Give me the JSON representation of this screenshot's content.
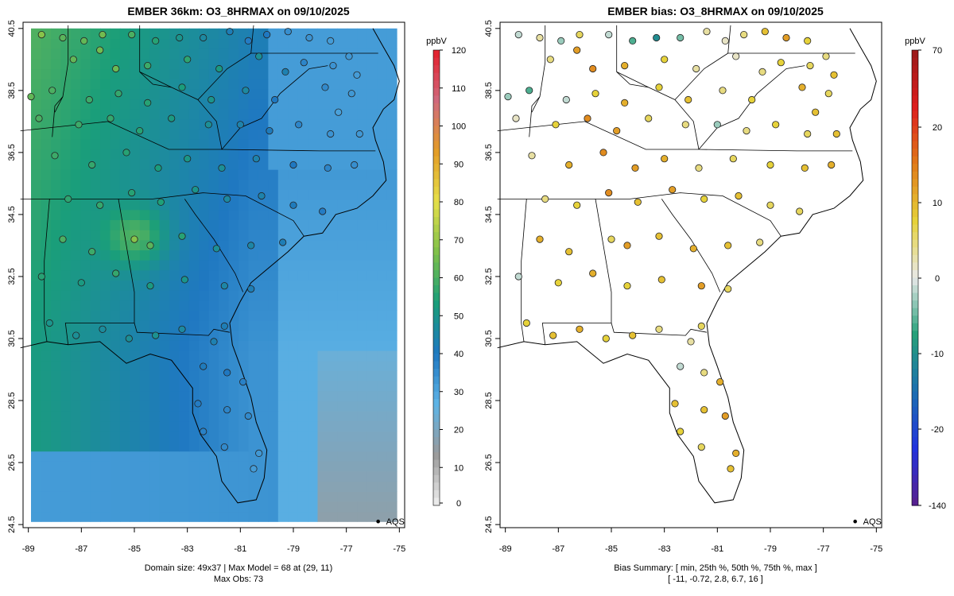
{
  "left_panel": {
    "title": "EMBER 36km: O3_8HRMAX on 09/10/2025",
    "colorbar": {
      "unit": "ppbV",
      "ticks": [
        "0",
        "10",
        "20",
        "30",
        "40",
        "50",
        "60",
        "70",
        "80",
        "90",
        "100",
        "110",
        "120"
      ],
      "values": [
        0,
        10,
        20,
        30,
        40,
        50,
        60,
        70,
        80,
        90,
        100,
        110,
        120
      ]
    },
    "legend_label": "AQS",
    "footer_line1": "Domain size: 49x37 | Max Model = 68 at (29, 11)",
    "footer_line2": "Max Obs: 73"
  },
  "right_panel": {
    "title": "EMBER bias: O3_8HRMAX on 09/10/2025",
    "colorbar": {
      "unit": "ppbV",
      "ticks": [
        "70",
        "20",
        "10",
        "0",
        "-10",
        "-20",
        "-140"
      ],
      "values": [
        70,
        20,
        10,
        0,
        -10,
        -20,
        -140
      ]
    },
    "legend_label": "AQS",
    "footer_line1": "Bias Summary: [ min, 25th %, 50th %, 75th %, max ]",
    "footer_line2": "[ -11,   -0.72,   2.8,   6.7,   16 ]"
  },
  "axes": {
    "x_ticks": [
      "-89",
      "-87",
      "-85",
      "-83",
      "-81",
      "-79",
      "-77",
      "-75"
    ],
    "x_values": [
      -89,
      -87,
      -85,
      -83,
      -81,
      -79,
      -77,
      -75
    ],
    "y_ticks": [
      "24.5",
      "26.5",
      "28.5",
      "30.5",
      "32.5",
      "34.5",
      "36.5",
      "38.5",
      "40.5"
    ],
    "y_values": [
      24.5,
      26.5,
      28.5,
      30.5,
      32.5,
      34.5,
      36.5,
      38.5,
      40.5
    ],
    "x_range": [
      -89.2,
      -74.8
    ],
    "y_range": [
      24.4,
      40.7
    ]
  },
  "map_data": {
    "bias_summary": {
      "min": -11,
      "p25": -0.72,
      "p50": 2.8,
      "p75": 6.7,
      "max": 16
    },
    "max_model": 68,
    "max_model_cell": [
      29,
      11
    ],
    "max_obs": 73,
    "domain_size": [
      49,
      37
    ]
  },
  "colors": {
    "model_scale": [
      "#f0f0f0",
      "#9a9a9a",
      "#5fb4e6",
      "#1f78c1",
      "#1a9e7a",
      "#7ec04a",
      "#e6e04a",
      "#e39c27",
      "#cf6a7e",
      "#e41e2b"
    ],
    "bias_scale": [
      "#5a1f8c",
      "#2233dd",
      "#1c6fb0",
      "#26a07a",
      "#e8e8e8",
      "#e6d23a",
      "#e07a18",
      "#dd1d1d",
      "#9a1a1a"
    ]
  },
  "stations": [
    [
      -88.5,
      40.3,
      68,
      -1
    ],
    [
      -87.7,
      40.2,
      62,
      2
    ],
    [
      -86.9,
      40.1,
      63,
      -2
    ],
    [
      -86.2,
      40.3,
      65,
      4
    ],
    [
      -85.1,
      40.3,
      60,
      -1
    ],
    [
      -84.2,
      40.1,
      55,
      -4
    ],
    [
      -83.3,
      40.2,
      50,
      -7
    ],
    [
      -82.4,
      40.2,
      46,
      -3
    ],
    [
      -81.4,
      40.4,
      42,
      2
    ],
    [
      -80.7,
      40.1,
      39,
      1
    ],
    [
      -80.0,
      40.3,
      40,
      3
    ],
    [
      -79.2,
      40.4,
      35,
      6
    ],
    [
      -78.4,
      40.2,
      34,
      8
    ],
    [
      -77.6,
      40.1,
      32,
      5
    ],
    [
      -87.3,
      39.5,
      63,
      3
    ],
    [
      -86.3,
      39.8,
      65,
      8
    ],
    [
      -85.7,
      39.2,
      64,
      9
    ],
    [
      -84.5,
      39.3,
      58,
      7
    ],
    [
      -83.0,
      39.5,
      56,
      5
    ],
    [
      -81.8,
      39.2,
      52,
      2
    ],
    [
      -80.3,
      39.6,
      48,
      1
    ],
    [
      -79.3,
      39.1,
      43,
      3
    ],
    [
      -78.6,
      39.4,
      37,
      5
    ],
    [
      -77.5,
      39.3,
      34,
      4
    ],
    [
      -76.9,
      39.6,
      33,
      3
    ],
    [
      -76.6,
      39.0,
      32,
      6
    ],
    [
      -88.9,
      38.3,
      63,
      -2
    ],
    [
      -88.1,
      38.5,
      60,
      -4
    ],
    [
      -86.7,
      38.2,
      58,
      -1
    ],
    [
      -85.6,
      38.4,
      57,
      5
    ],
    [
      -84.5,
      38.1,
      55,
      7
    ],
    [
      -83.2,
      38.6,
      53,
      5
    ],
    [
      -82.1,
      38.2,
      50,
      6
    ],
    [
      -80.8,
      38.5,
      46,
      3
    ],
    [
      -79.7,
      38.2,
      40,
      5
    ],
    [
      -77.8,
      38.6,
      36,
      7
    ],
    [
      -76.8,
      38.4,
      33,
      4
    ],
    [
      -77.3,
      37.8,
      31,
      6
    ],
    [
      -88.6,
      37.6,
      60,
      1
    ],
    [
      -87.1,
      37.4,
      58,
      5
    ],
    [
      -85.9,
      37.6,
      57,
      9
    ],
    [
      -84.8,
      37.2,
      55,
      8
    ],
    [
      -83.6,
      37.6,
      52,
      4
    ],
    [
      -82.2,
      37.4,
      48,
      3
    ],
    [
      -81.0,
      37.4,
      44,
      -2
    ],
    [
      -79.9,
      37.2,
      41,
      3
    ],
    [
      -78.8,
      37.4,
      37,
      5
    ],
    [
      -77.6,
      37.1,
      34,
      4
    ],
    [
      -76.5,
      37.1,
      33,
      6
    ],
    [
      -88.0,
      36.4,
      58,
      2
    ],
    [
      -86.6,
      36.1,
      57,
      7
    ],
    [
      -85.3,
      36.5,
      55,
      9
    ],
    [
      -84.1,
      36.0,
      53,
      8
    ],
    [
      -83.0,
      36.3,
      51,
      7
    ],
    [
      -81.7,
      36.0,
      48,
      3
    ],
    [
      -80.4,
      36.3,
      44,
      4
    ],
    [
      -79.0,
      36.1,
      40,
      5
    ],
    [
      -77.7,
      36.0,
      37,
      6
    ],
    [
      -76.7,
      36.1,
      35,
      7
    ],
    [
      -87.5,
      35.0,
      56,
      3
    ],
    [
      -86.3,
      34.8,
      57,
      5
    ],
    [
      -85.1,
      35.2,
      55,
      9
    ],
    [
      -84.0,
      34.9,
      54,
      6
    ],
    [
      -82.7,
      35.3,
      50,
      8
    ],
    [
      -81.5,
      35.0,
      46,
      5
    ],
    [
      -80.2,
      35.1,
      44,
      6
    ],
    [
      -79.0,
      34.8,
      41,
      4
    ],
    [
      -77.9,
      34.6,
      39,
      4
    ],
    [
      -87.7,
      33.7,
      60,
      7
    ],
    [
      -86.6,
      33.3,
      58,
      6
    ],
    [
      -85.0,
      33.7,
      68,
      4
    ],
    [
      -84.4,
      33.5,
      62,
      8
    ],
    [
      -83.2,
      33.8,
      55,
      6
    ],
    [
      -81.9,
      33.4,
      48,
      7
    ],
    [
      -80.6,
      33.5,
      45,
      6
    ],
    [
      -79.4,
      33.6,
      42,
      3
    ],
    [
      -88.5,
      32.5,
      55,
      -1
    ],
    [
      -87.0,
      32.3,
      52,
      5
    ],
    [
      -85.7,
      32.6,
      57,
      7
    ],
    [
      -84.4,
      32.2,
      52,
      5
    ],
    [
      -83.1,
      32.4,
      50,
      6
    ],
    [
      -81.6,
      32.2,
      45,
      8
    ],
    [
      -80.6,
      32.1,
      42,
      4
    ],
    [
      -88.2,
      31.0,
      50,
      5
    ],
    [
      -87.2,
      30.6,
      48,
      6
    ],
    [
      -86.2,
      30.8,
      47,
      7
    ],
    [
      -85.2,
      30.5,
      48,
      5
    ],
    [
      -84.2,
      30.6,
      49,
      6
    ],
    [
      -83.2,
      30.8,
      46,
      3
    ],
    [
      -82.0,
      30.4,
      43,
      2
    ],
    [
      -81.6,
      30.9,
      42,
      4
    ],
    [
      -82.4,
      29.6,
      41,
      -1
    ],
    [
      -81.5,
      29.4,
      40,
      3
    ],
    [
      -80.9,
      29.1,
      38,
      7
    ],
    [
      -82.6,
      28.4,
      39,
      6
    ],
    [
      -81.5,
      28.2,
      37,
      6
    ],
    [
      -80.7,
      28.0,
      36,
      8
    ],
    [
      -82.4,
      27.5,
      38,
      5
    ],
    [
      -81.6,
      27.0,
      36,
      4
    ],
    [
      -80.3,
      26.8,
      33,
      7
    ],
    [
      -80.5,
      26.3,
      32,
      6
    ]
  ]
}
